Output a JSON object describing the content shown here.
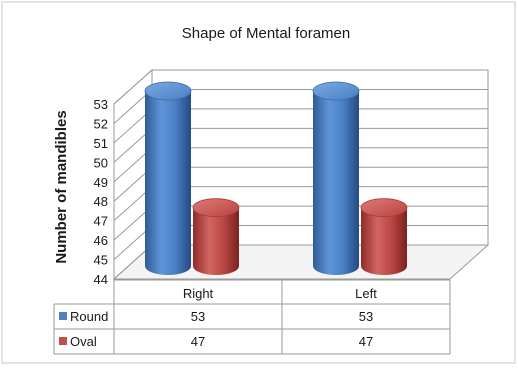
{
  "chart_data": {
    "type": "bar",
    "title": "Shape of Mental foramen",
    "xlabel": "",
    "ylabel": "Number of mandibles",
    "categories": [
      "Right",
      "Left"
    ],
    "series": [
      {
        "name": "Round",
        "values": [
          53,
          53
        ],
        "color": "#4F81BD"
      },
      {
        "name": "Oval",
        "values": [
          47,
          47
        ],
        "color": "#C0504D"
      }
    ],
    "ylim": [
      44,
      53
    ],
    "yticks": [
      "44",
      "45",
      "46",
      "47",
      "48",
      "49",
      "50",
      "51",
      "52",
      "53"
    ],
    "grid": true,
    "legend": "data-table-left",
    "data_table": {
      "rows": [
        {
          "label": "Round",
          "cells": [
            "53",
            "53"
          ]
        },
        {
          "label": "Oval",
          "cells": [
            "47",
            "47"
          ]
        }
      ]
    }
  }
}
